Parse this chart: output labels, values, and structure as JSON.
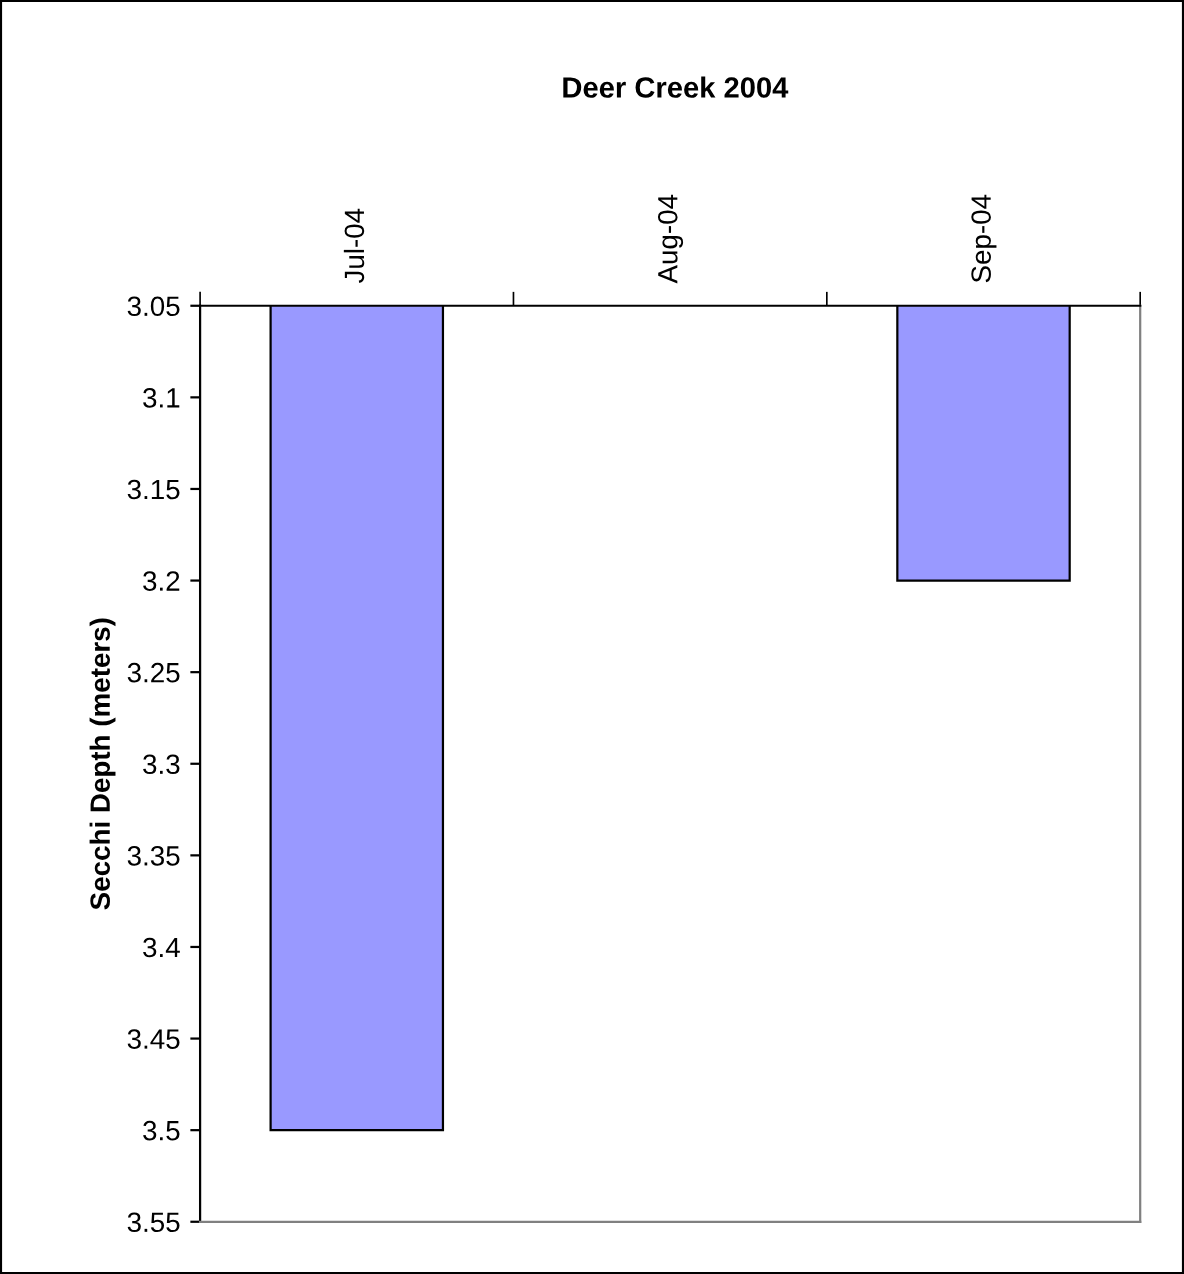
{
  "chart_data": {
    "type": "bar",
    "title": "Deer Creek 2004",
    "ylabel": "Secchi Depth (meters)",
    "categories": [
      "Jul-04",
      "Aug-04",
      "Sep-04"
    ],
    "values": [
      3.5,
      null,
      3.2
    ],
    "color": "#9999ff",
    "ylim": [
      3.55,
      3.05
    ],
    "yticks": [
      3.05,
      3.1,
      3.15,
      3.2,
      3.25,
      3.3,
      3.35,
      3.4,
      3.45,
      3.5,
      3.55
    ],
    "grid": false,
    "legend": false
  }
}
